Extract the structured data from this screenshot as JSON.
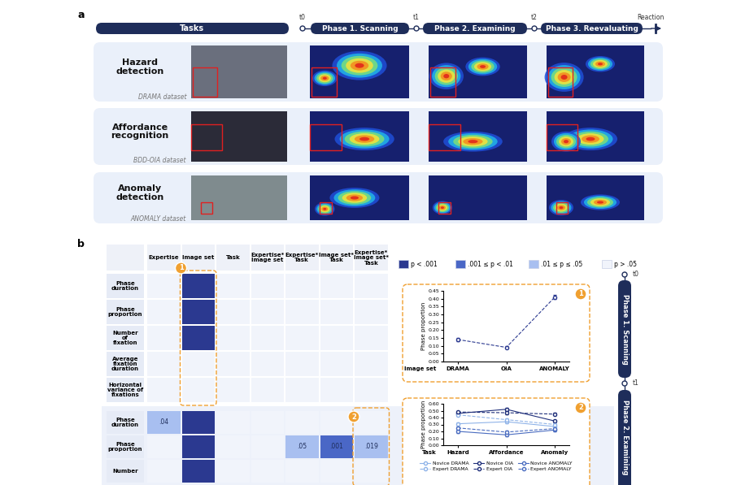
{
  "panel_a": {
    "label": "a",
    "header": "Tasks",
    "timeline": {
      "start": "t0",
      "phases": [
        "Phase 1. Scanning",
        "Phase 2. Examining",
        "Phase 3. Reevaluating"
      ],
      "marks": [
        "t1",
        "t2"
      ],
      "end": "Reaction"
    },
    "rows": [
      {
        "task": "Hazard\ndetection",
        "dataset": "DRAMA dataset"
      },
      {
        "task": "Affordance\nrecognition",
        "dataset": "BDD-OIA dataset"
      },
      {
        "task": "Anomaly\ndetection",
        "dataset": "ANOMALY dataset"
      }
    ]
  },
  "panel_b": {
    "label": "b",
    "columns": [
      "Expertise",
      "Image set",
      "Task",
      "Expertise*\nImage set",
      "Expertise*\nTask",
      "Image set*\nTask",
      "Expertise*\nImage set*\nTask"
    ],
    "legend": [
      {
        "label": "p < .001",
        "color": "#2b3990"
      },
      {
        "label": ".001 ≤ p < .01",
        "color": "#4a67c6"
      },
      {
        "label": ".01 ≤ p ≤ .05",
        "color": "#a8bff0"
      },
      {
        "label": "p > .05",
        "color": "#f1f4fb"
      }
    ],
    "sections": [
      {
        "highlight": {
          "column": "Image set",
          "badge": "1"
        },
        "rows": [
          {
            "label": "Phase\nduration",
            "p": [
              "p > .05",
              "p < .001",
              "p > .05",
              "p > .05",
              "p > .05",
              "p > .05",
              "p > .05"
            ],
            "texts": [
              null,
              null,
              null,
              null,
              null,
              null,
              null
            ]
          },
          {
            "label": "Phase\nproportion",
            "p": [
              "p > .05",
              "p < .001",
              "p > .05",
              "p > .05",
              "p > .05",
              "p > .05",
              "p > .05"
            ],
            "texts": [
              null,
              null,
              null,
              null,
              null,
              null,
              null
            ]
          },
          {
            "label": "Number\nof\nfixation",
            "p": [
              "p > .05",
              "p < .001",
              "p > .05",
              "p > .05",
              "p > .05",
              "p > .05",
              "p > .05"
            ],
            "texts": [
              null,
              null,
              null,
              null,
              null,
              null,
              null
            ]
          },
          {
            "label": "Average\nfixation\nduration",
            "p": [
              "p > .05",
              "p > .05",
              "p > .05",
              "p > .05",
              "p > .05",
              "p > .05",
              "p > .05"
            ],
            "texts": [
              null,
              null,
              null,
              null,
              null,
              null,
              null
            ]
          },
          {
            "label": "Horizontal\nvariance of\nfixations",
            "p": [
              "p > .05",
              "p > .05",
              "p > .05",
              "p > .05",
              "p > .05",
              "p > .05",
              "p > .05"
            ],
            "texts": [
              null,
              null,
              null,
              null,
              null,
              null,
              null
            ]
          }
        ]
      },
      {
        "highlight": {
          "column": "Expertise*\nImage set*\nTask",
          "badge": "2"
        },
        "rows": [
          {
            "label": "Phase\nduration",
            "p": [
              ".01 ≤ p ≤ .05",
              "p < .001",
              "p > .05",
              "p > .05",
              "p > .05",
              "p > .05",
              "p > .05"
            ],
            "texts": [
              ".04",
              null,
              null,
              null,
              null,
              null,
              null
            ]
          },
          {
            "label": "Phase\nproportion",
            "p": [
              "p > .05",
              "p < .001",
              "p > .05",
              "p > .05",
              ".01 ≤ p ≤ .05",
              ".001 ≤ p < .01",
              ".01 ≤ p ≤ .05"
            ],
            "texts": [
              null,
              null,
              null,
              null,
              ".05",
              ".001",
              ".019"
            ]
          },
          {
            "label": "Number",
            "p": [
              "p > .05",
              "p < .001",
              "p > .05",
              "p > .05",
              "p > .05",
              "p > .05",
              "p > .05"
            ],
            "texts": [
              null,
              null,
              null,
              null,
              null,
              null,
              null
            ]
          }
        ]
      }
    ],
    "side_timeline": {
      "marks": [
        "t0",
        "t1"
      ],
      "phases": [
        "Phase 1. Scanning",
        "Phase 2. Examining"
      ]
    }
  },
  "chart_data": [
    {
      "type": "line",
      "badge": "1",
      "ylabel": "Phase proportion",
      "xlabel": "Image set",
      "categories": [
        "DRAMA",
        "OIA",
        "ANOMALY"
      ],
      "values": [
        0.14,
        0.09,
        0.41
      ],
      "errors": [
        0.01,
        0.006,
        0.012
      ],
      "color": "#2b3990",
      "marker": "circle",
      "line_style": "dashed",
      "ylim": [
        0,
        0.45
      ],
      "yticks": [
        {
          "value": 0,
          "label": "0.00"
        },
        {
          "value": 0.05,
          "label": "0.05"
        },
        {
          "value": 0.1,
          "label": "0.10"
        },
        {
          "value": 0.15,
          "label": "0.15"
        },
        {
          "value": 0.2,
          "label": "0.20"
        },
        {
          "value": 0.25,
          "label": "0.25"
        },
        {
          "value": 0.3,
          "label": "0.30"
        },
        {
          "value": 0.35,
          "label": "0.35"
        },
        {
          "value": 0.4,
          "label": "0.40"
        },
        {
          "value": 0.45,
          "label": "0.45"
        }
      ]
    },
    {
      "type": "line",
      "badge": "2",
      "ylabel": "Phase proportion",
      "xlabel": "Task",
      "categories": [
        "Hazard",
        "Affordance",
        "Anomaly"
      ],
      "series": [
        {
          "name": "Novice DRAMA",
          "color": "#8fb3e8",
          "marker": "circle",
          "line_style": "solid",
          "values": [
            0.31,
            0.34,
            0.27
          ],
          "errors": [
            0.02,
            0.02,
            0.02
          ]
        },
        {
          "name": "Novice OIA",
          "color": "#1f2f7a",
          "marker": "circle",
          "line_style": "solid",
          "values": [
            0.46,
            0.52,
            0.35
          ],
          "errors": [
            0.02,
            0.02,
            0.02
          ]
        },
        {
          "name": "Novice ANOMALY",
          "color": "#4a6cc0",
          "marker": "circle",
          "line_style": "solid",
          "values": [
            0.2,
            0.15,
            0.22
          ],
          "errors": [
            0.02,
            0.02,
            0.02
          ]
        },
        {
          "name": "Expert DRAMA",
          "color": "#8fb3e8",
          "marker": "circle",
          "line_style": "dashed",
          "values": [
            0.44,
            0.37,
            0.3
          ],
          "errors": [
            0.02,
            0.02,
            0.02
          ]
        },
        {
          "name": "Expert OIA",
          "color": "#1f2f7a",
          "marker": "circle",
          "line_style": "dashed",
          "values": [
            0.48,
            0.47,
            0.45
          ],
          "errors": [
            0.02,
            0.02,
            0.02
          ]
        },
        {
          "name": "Expert ANOMALY",
          "color": "#4a6cc0",
          "marker": "circle",
          "line_style": "dashed",
          "values": [
            0.25,
            0.19,
            0.24
          ],
          "errors": [
            0.02,
            0.02,
            0.02
          ]
        }
      ],
      "legend": "below",
      "ylim": [
        0,
        0.6
      ],
      "yticks": [
        {
          "value": 0,
          "label": "0.00"
        },
        {
          "value": 0.1,
          "label": "0.10"
        },
        {
          "value": 0.2,
          "label": "0.20"
        },
        {
          "value": 0.3,
          "label": "0.30"
        },
        {
          "value": 0.4,
          "label": "0.40"
        },
        {
          "value": 0.5,
          "label": "0.50"
        },
        {
          "value": 0.6,
          "label": "0.60"
        }
      ]
    }
  ]
}
